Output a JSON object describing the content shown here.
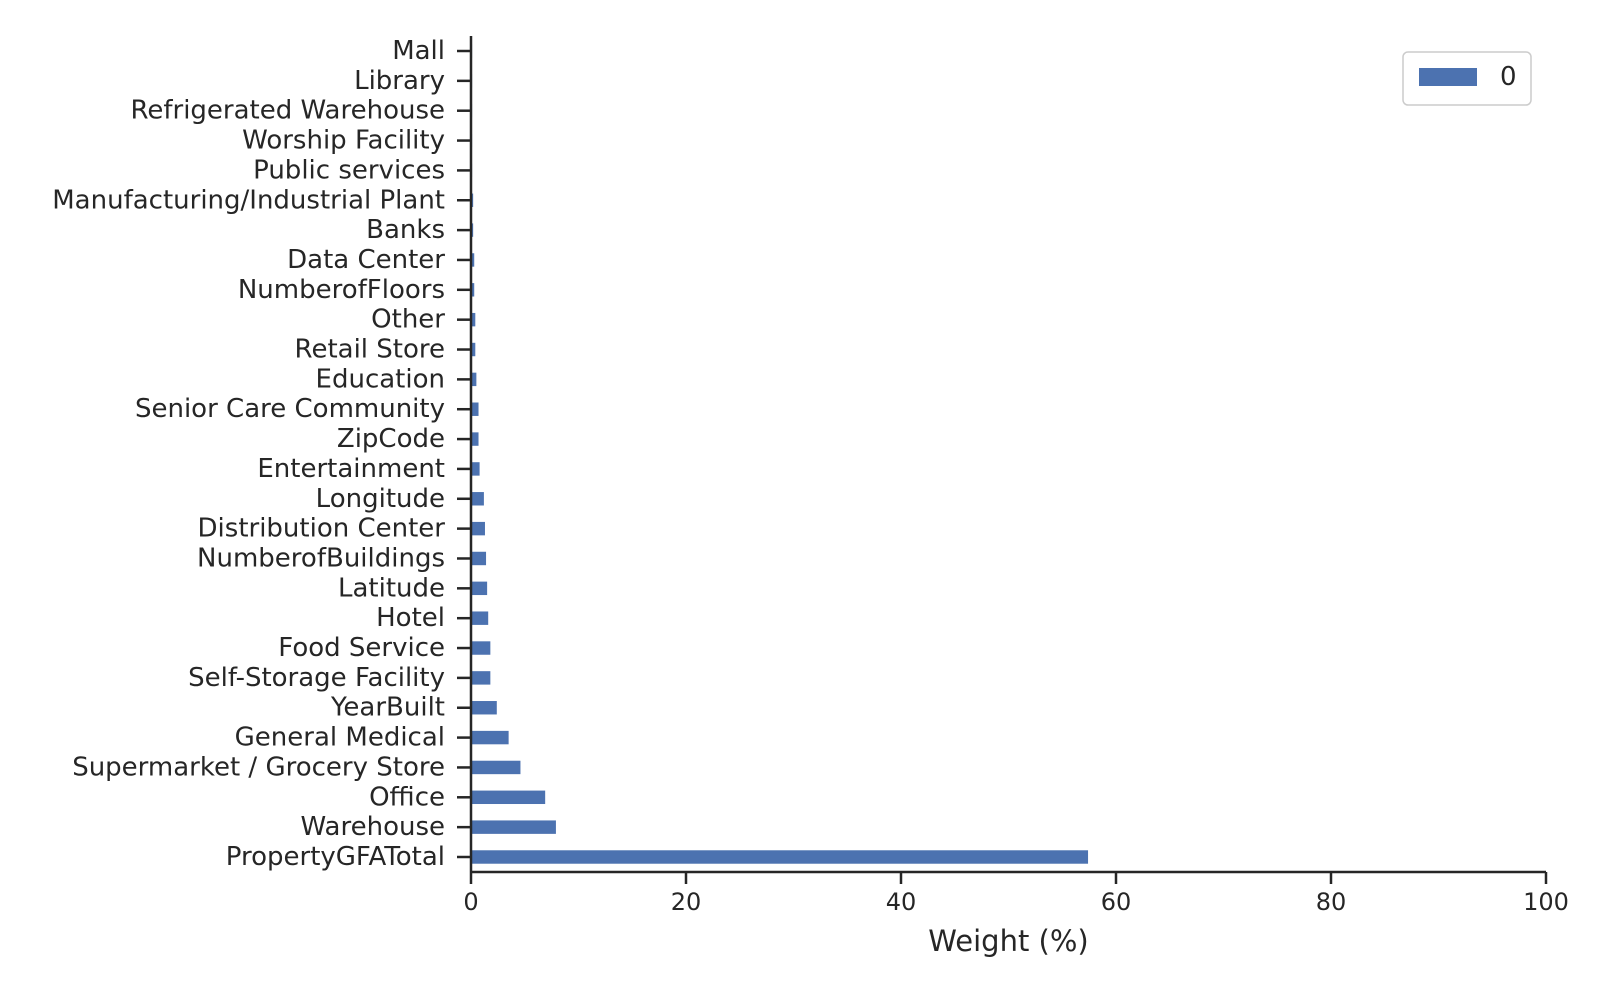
{
  "chart_data": {
    "type": "bar",
    "orientation": "horizontal",
    "categories": [
      "PropertyGFATotal",
      "Warehouse",
      "Office",
      "Supermarket / Grocery Store",
      "General Medical",
      "YearBuilt",
      "Self-Storage Facility",
      "Food Service",
      "Hotel",
      "Latitude",
      "NumberofBuildings",
      "Distribution Center",
      "Longitude",
      "Entertainment",
      "ZipCode",
      "Senior Care Community",
      "Education",
      "Retail Store",
      "Other",
      "NumberofFloors",
      "Data Center",
      "Banks",
      "Manufacturing/Industrial Plant",
      "Public services",
      "Worship Facility",
      "Refrigerated Warehouse",
      "Library",
      "Mall"
    ],
    "series": [
      {
        "name": "0",
        "color": "#4c72b0",
        "values": [
          57.4,
          7.9,
          6.9,
          4.6,
          3.5,
          2.4,
          1.8,
          1.8,
          1.6,
          1.5,
          1.4,
          1.3,
          1.2,
          0.8,
          0.7,
          0.7,
          0.5,
          0.4,
          0.4,
          0.3,
          0.3,
          0.2,
          0.2,
          0.1,
          0.1,
          0.1,
          0.1,
          0.1
        ]
      }
    ],
    "xlabel": "Weight (%)",
    "ylabel": "",
    "xlim": [
      0,
      100
    ],
    "xticks": [
      0,
      20,
      40,
      60,
      80,
      100
    ],
    "grid": false,
    "legend_position": "top-right"
  }
}
